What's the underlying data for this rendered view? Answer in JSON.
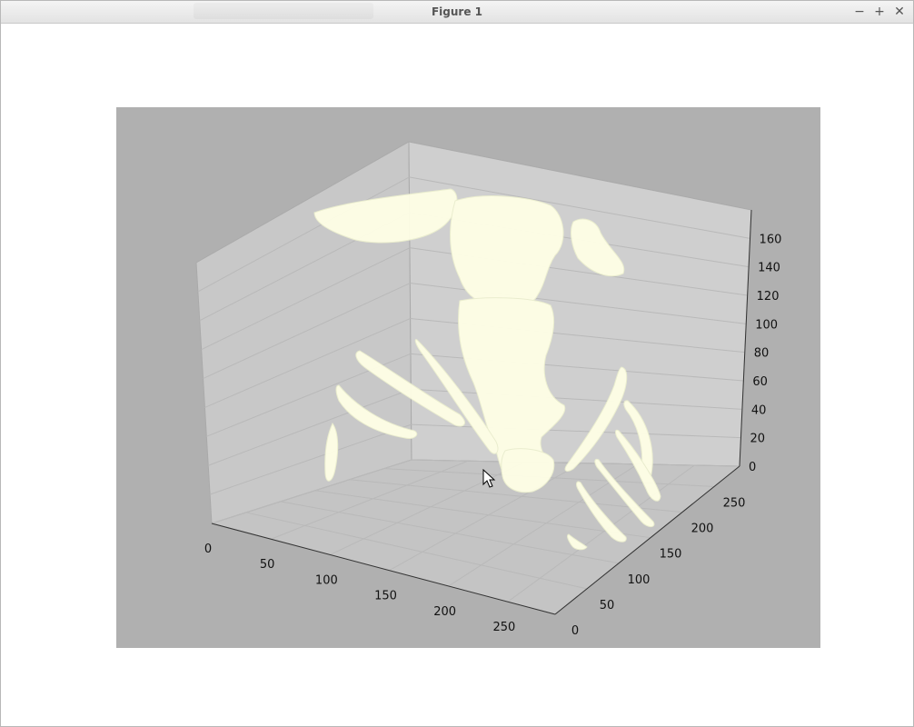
{
  "window": {
    "title": "Figure 1",
    "minimize_icon": "minus-icon",
    "maximize_icon": "plus-icon",
    "close_icon": "close-icon"
  },
  "colors": {
    "pane_bg": "#b0b0b0",
    "surface": "#ffffee",
    "panel": "#cccccc"
  },
  "chart_data": {
    "type": "3d-surface",
    "x_ticks": [
      "0",
      "50",
      "100",
      "150",
      "200",
      "250"
    ],
    "y_ticks": [
      "0",
      "50",
      "100",
      "150",
      "200",
      "250"
    ],
    "z_ticks": [
      "0",
      "20",
      "40",
      "60",
      "80",
      "100",
      "120",
      "140",
      "160"
    ],
    "x_range": [
      0,
      290
    ],
    "y_range": [
      0,
      290
    ],
    "z_range": [
      0,
      180
    ],
    "grid": true
  }
}
